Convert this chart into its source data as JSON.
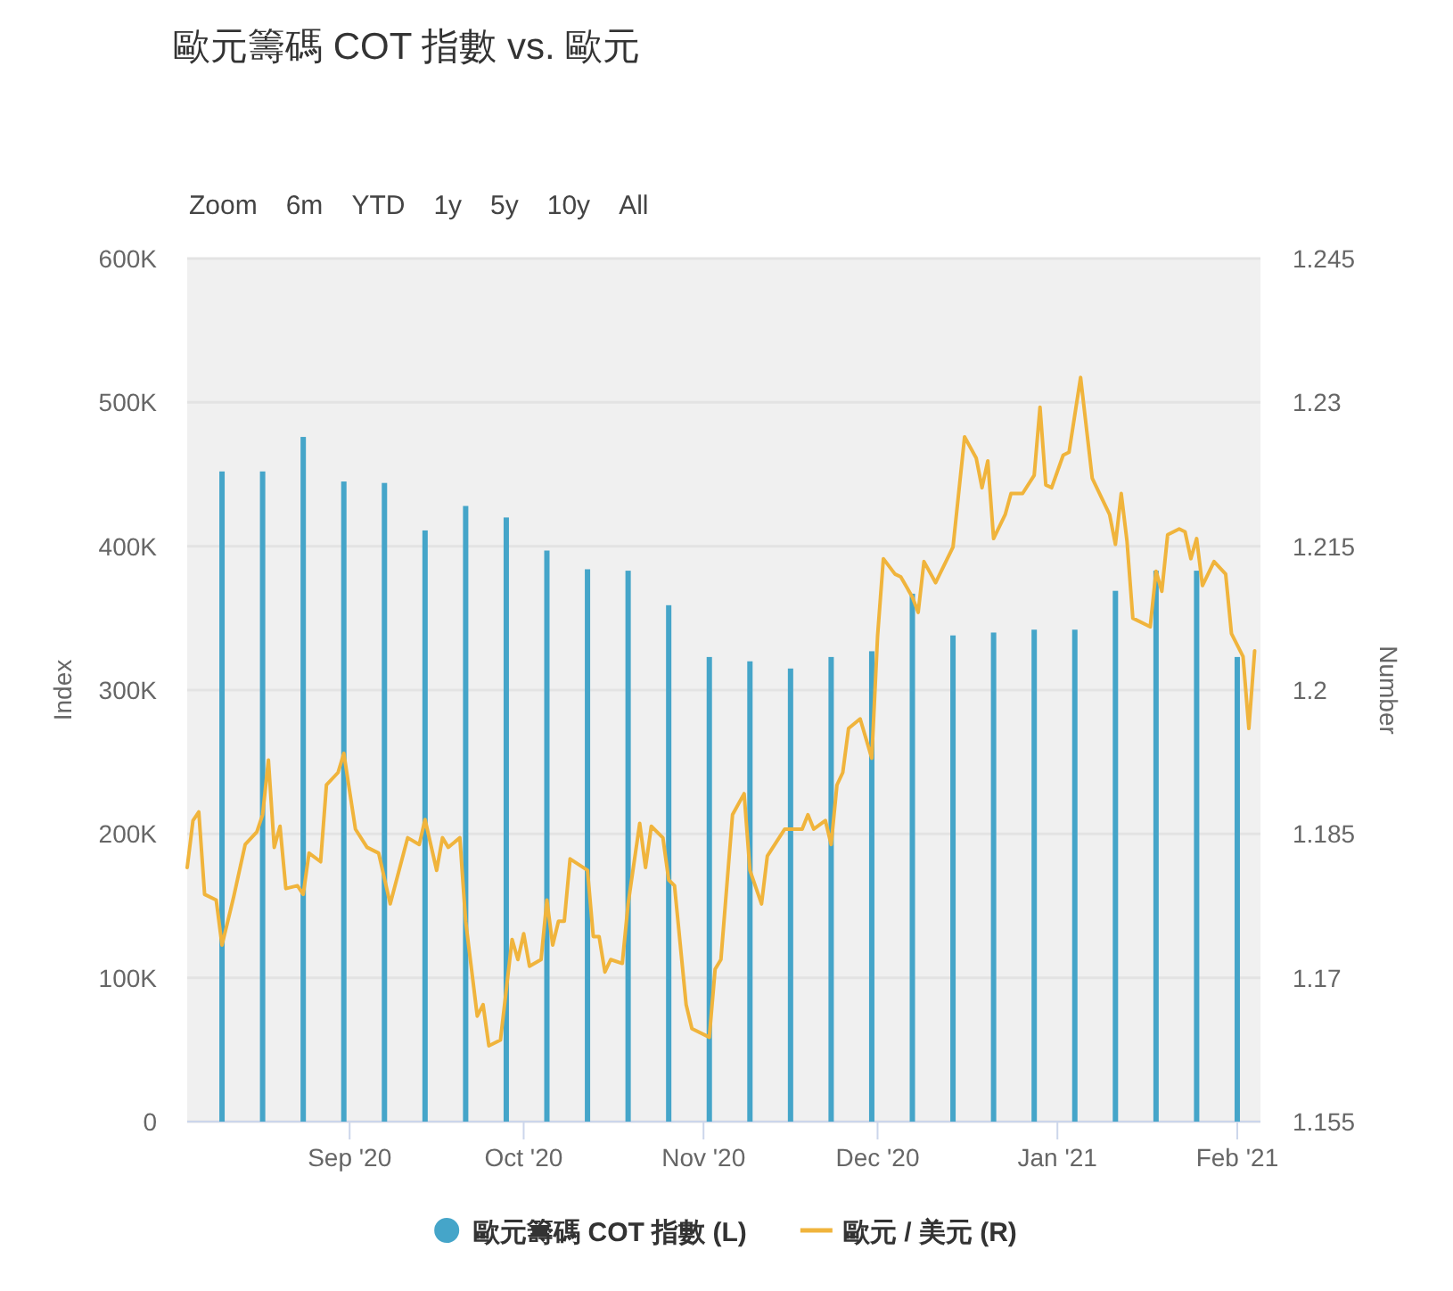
{
  "chart_data": {
    "type": "bar",
    "title": "歐元籌碼 COT 指數 vs. 歐元",
    "annotations": [
      "Zoom",
      "6m",
      "YTD",
      "1y",
      "5y",
      "10y",
      "All"
    ],
    "ylabel": "Index",
    "y2label": "Number",
    "xlim": [
      "2020-08-04",
      "2021-02-05"
    ],
    "xticks": [
      {
        "value": "2020-09-01",
        "label": "Sep '20"
      },
      {
        "value": "2020-10-01",
        "label": "Oct '20"
      },
      {
        "value": "2020-11-01",
        "label": "Nov '20"
      },
      {
        "value": "2020-12-01",
        "label": "Dec '20"
      },
      {
        "value": "2021-01-01",
        "label": "Jan '21"
      },
      {
        "value": "2021-02-01",
        "label": "Feb '21"
      }
    ],
    "ylim": [
      0,
      600000
    ],
    "yticks": [
      0,
      {
        "value": 100000,
        "label": "100K"
      },
      {
        "value": 200000,
        "label": "200K"
      },
      {
        "value": 300000,
        "label": "300K"
      },
      {
        "value": 400000,
        "label": "400K"
      },
      {
        "value": 500000,
        "label": "500K"
      },
      {
        "value": 600000,
        "label": "600K"
      }
    ],
    "y2lim": [
      1.155,
      1.245
    ],
    "y2ticks": [
      1.155,
      1.17,
      1.185,
      1.2,
      1.215,
      1.23,
      1.245
    ],
    "grid": "y",
    "legend": "bottom",
    "series": [
      {
        "name": "歐元籌碼 COT 指數 (L)",
        "color": "#45a5c9",
        "x": [
          "2020-08-10",
          "2020-08-17",
          "2020-08-24",
          "2020-08-31",
          "2020-09-07",
          "2020-09-14",
          "2020-09-21",
          "2020-09-28",
          "2020-10-05",
          "2020-10-12",
          "2020-10-19",
          "2020-10-26",
          "2020-11-02",
          "2020-11-09",
          "2020-11-16",
          "2020-11-23",
          "2020-11-30",
          "2020-12-07",
          "2020-12-14",
          "2020-12-21",
          "2020-12-28",
          "2021-01-04",
          "2021-01-11",
          "2021-01-18",
          "2021-01-25",
          "2021-02-01"
        ],
        "values": [
          452000,
          452000,
          476000,
          445000,
          444000,
          411000,
          428000,
          420000,
          397000,
          384000,
          383000,
          359000,
          323000,
          320000,
          315000,
          323000,
          327000,
          367000,
          338000,
          340000,
          342000,
          342000,
          369000,
          383000,
          383000,
          323000
        ]
      },
      {
        "name": "歐元 / 美元 (R)",
        "type": "line",
        "axis": "y2",
        "color": "#f0b43c",
        "x": [
          "2020-08-04",
          "2020-08-05",
          "2020-08-06",
          "2020-08-07",
          "2020-08-09",
          "2020-08-10",
          "2020-08-12",
          "2020-08-14",
          "2020-08-16",
          "2020-08-17",
          "2020-08-18",
          "2020-08-19",
          "2020-08-20",
          "2020-08-21",
          "2020-08-23",
          "2020-08-24",
          "2020-08-25",
          "2020-08-27",
          "2020-08-28",
          "2020-08-30",
          "2020-08-31",
          "2020-09-02",
          "2020-09-04",
          "2020-09-06",
          "2020-09-08",
          "2020-09-11",
          "2020-09-13",
          "2020-09-14",
          "2020-09-16",
          "2020-09-17",
          "2020-09-18",
          "2020-09-20",
          "2020-09-21",
          "2020-09-23",
          "2020-09-24",
          "2020-09-25",
          "2020-09-27",
          "2020-09-29",
          "2020-09-30",
          "2020-10-01",
          "2020-10-02",
          "2020-10-04",
          "2020-10-05",
          "2020-10-06",
          "2020-10-07",
          "2020-10-08",
          "2020-10-09",
          "2020-10-12",
          "2020-10-13",
          "2020-10-14",
          "2020-10-15",
          "2020-10-16",
          "2020-10-18",
          "2020-10-19",
          "2020-10-21",
          "2020-10-22",
          "2020-10-23",
          "2020-10-25",
          "2020-10-26",
          "2020-10-27",
          "2020-10-29",
          "2020-10-30",
          "2020-11-02",
          "2020-11-03",
          "2020-11-04",
          "2020-11-06",
          "2020-11-08",
          "2020-11-09",
          "2020-11-11",
          "2020-11-12",
          "2020-11-15",
          "2020-11-18",
          "2020-11-19",
          "2020-11-20",
          "2020-11-22",
          "2020-11-23",
          "2020-11-24",
          "2020-11-25",
          "2020-11-26",
          "2020-11-28",
          "2020-11-30",
          "2020-12-01",
          "2020-12-02",
          "2020-12-04",
          "2020-12-05",
          "2020-12-07",
          "2020-12-08",
          "2020-12-09",
          "2020-12-11",
          "2020-12-14",
          "2020-12-16",
          "2020-12-18",
          "2020-12-19",
          "2020-12-20",
          "2020-12-21",
          "2020-12-23",
          "2020-12-24",
          "2020-12-26",
          "2020-12-28",
          "2020-12-29",
          "2020-12-30",
          "2020-12-31",
          "2021-01-02",
          "2021-01-03",
          "2021-01-05",
          "2021-01-07",
          "2021-01-10",
          "2021-01-11",
          "2021-01-12",
          "2021-01-13",
          "2021-01-14",
          "2021-01-17",
          "2021-01-18",
          "2021-01-19",
          "2021-01-20",
          "2021-01-22",
          "2021-01-23",
          "2021-01-24",
          "2021-01-25",
          "2021-01-26",
          "2021-01-28",
          "2021-01-30",
          "2021-01-31",
          "2021-02-02",
          "2021-02-03",
          "2021-02-04"
        ],
        "values": [
          1.1815,
          1.1864,
          1.1873,
          1.1787,
          1.1781,
          1.1734,
          1.1784,
          1.1839,
          1.1852,
          1.187,
          1.1927,
          1.1836,
          1.1858,
          1.1793,
          1.1796,
          1.1787,
          1.183,
          1.1821,
          1.1901,
          1.1914,
          1.1934,
          1.1855,
          1.1836,
          1.183,
          1.1777,
          1.1846,
          1.1839,
          1.1865,
          1.1812,
          1.1846,
          1.1836,
          1.1846,
          1.1759,
          1.166,
          1.1672,
          1.1629,
          1.1635,
          1.174,
          1.1719,
          1.1746,
          1.1712,
          1.1719,
          1.1781,
          1.1734,
          1.1759,
          1.1759,
          1.1824,
          1.1812,
          1.1743,
          1.1743,
          1.1706,
          1.1719,
          1.1715,
          1.1777,
          1.1861,
          1.1815,
          1.1858,
          1.1846,
          1.1802,
          1.1796,
          1.1672,
          1.1647,
          1.1638,
          1.1709,
          1.1719,
          1.187,
          1.1892,
          1.1812,
          1.1777,
          1.1827,
          1.1855,
          1.1855,
          1.187,
          1.1855,
          1.1864,
          1.1839,
          1.1901,
          1.1914,
          1.196,
          1.197,
          1.1929,
          1.2056,
          1.2137,
          1.2121,
          1.2118,
          1.2097,
          1.2081,
          1.2134,
          1.2112,
          1.2149,
          1.2264,
          1.2242,
          1.2211,
          1.2239,
          1.2158,
          1.2183,
          1.2205,
          1.2205,
          1.2224,
          1.2295,
          1.2214,
          1.2211,
          1.2245,
          1.2248,
          1.2326,
          1.2221,
          1.2183,
          1.2152,
          1.2205,
          1.2155,
          1.2075,
          1.2066,
          1.2124,
          1.2103,
          1.2162,
          1.2168,
          1.2165,
          1.2137,
          1.2158,
          1.2109,
          1.2134,
          1.2121,
          1.2059,
          1.2035,
          1.196,
          1.2041
        ]
      }
    ]
  }
}
